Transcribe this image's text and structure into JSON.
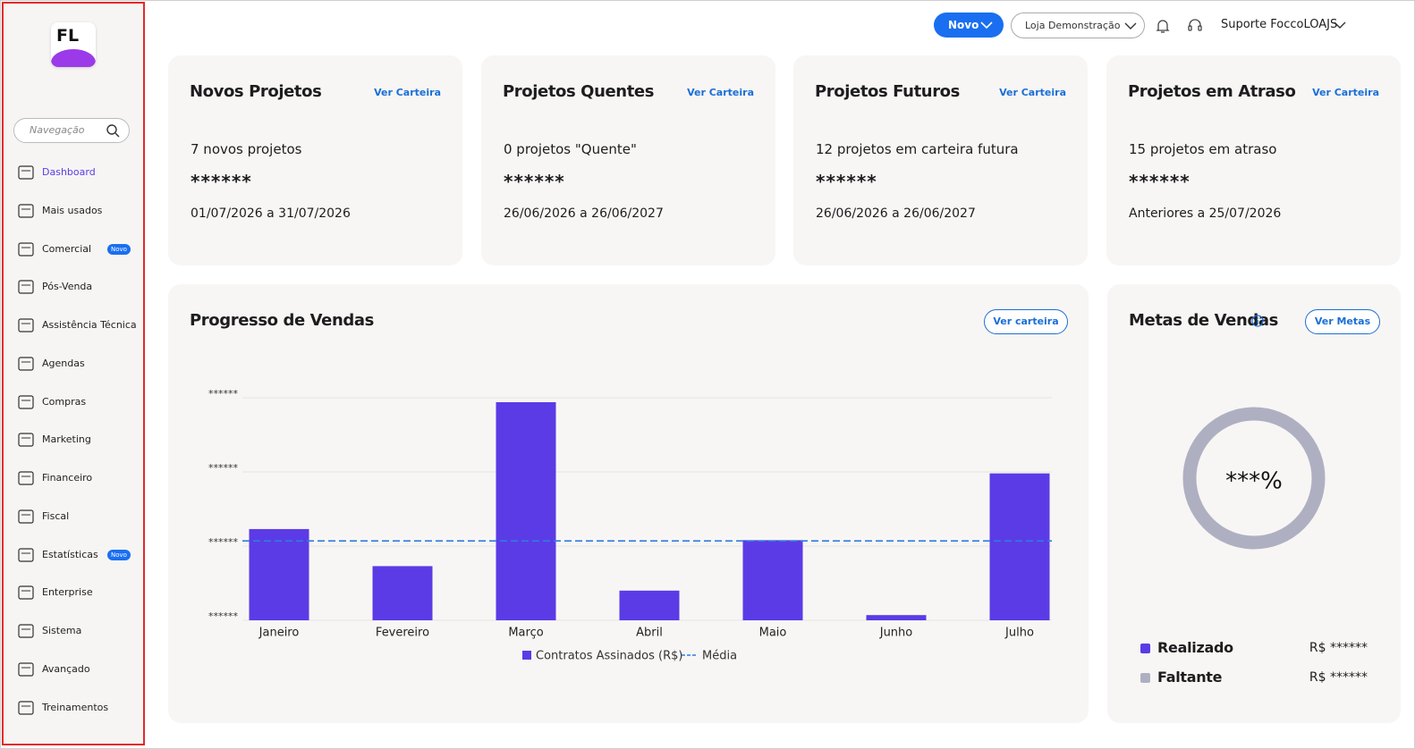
{
  "sidebar": {
    "logo": "FL",
    "search_placeholder": "Navegação",
    "items": [
      {
        "label": "Dashboard"
      },
      {
        "label": "Mais usados"
      },
      {
        "label": "Comercial",
        "badge": "Novo"
      },
      {
        "label": "Pós-Venda"
      },
      {
        "label": "Assistência Técnica"
      },
      {
        "label": "Agendas"
      },
      {
        "label": "Compras"
      },
      {
        "label": "Marketing"
      },
      {
        "label": "Financeiro"
      },
      {
        "label": "Fiscal"
      },
      {
        "label": "Estatísticas",
        "badge": "Novo"
      },
      {
        "label": "Enterprise"
      },
      {
        "label": "Sistema"
      },
      {
        "label": "Avançado"
      },
      {
        "label": "Treinamentos"
      }
    ]
  },
  "topbar": {
    "new_button": "Novo",
    "store": "Loja Demonstração",
    "user": "Suporte FoccoLOAJS"
  },
  "cards": [
    {
      "title": "Novos Projetos",
      "link": "Ver Carteira",
      "count": "7 novos projetos",
      "masked": "******",
      "period": "01/07/2026 a 31/07/2026"
    },
    {
      "title": "Projetos Quentes",
      "link": "Ver Carteira",
      "count": "0 projetos \"Quente\"",
      "masked": "******",
      "period": "26/06/2026 a 26/06/2027"
    },
    {
      "title": "Projetos Futuros",
      "link": "Ver Carteira",
      "count": "12 projetos em carteira futura",
      "masked": "******",
      "period": "26/06/2026 a 26/06/2027"
    },
    {
      "title": "Projetos em Atraso",
      "link": "Ver Carteira",
      "count": "15 projetos em atraso",
      "masked": "******",
      "period": "Anteriores a 25/07/2026"
    }
  ],
  "chart_data": {
    "type": "bar",
    "title": "Progresso de Vendas",
    "link": "Ver carteira",
    "categories": [
      "Janeiro",
      "Fevereiro",
      "Março",
      "Abril",
      "Maio",
      "Junho",
      "Julho"
    ],
    "series": [
      {
        "name": "Contratos Assinados (R$)",
        "color": "#5b3be6",
        "values": [
          1.23,
          0.73,
          2.94,
          0.4,
          1.08,
          0.07,
          1.98
        ]
      }
    ],
    "average": {
      "name": "Média",
      "color": "#2f7be0",
      "value": 1.07
    },
    "ylim": [
      0,
      3
    ],
    "yticks": [
      {
        "value": 0,
        "label": "******"
      },
      {
        "value": 1,
        "label": "******"
      },
      {
        "value": 2,
        "label": "******"
      },
      {
        "value": 3,
        "label": "******"
      }
    ],
    "grid": true
  },
  "goals": {
    "title": "Metas de Vendas",
    "link": "Ver Metas",
    "center": "***%",
    "legend": [
      {
        "name": "Realizado",
        "color": "#5b3be6",
        "amount": "R$ ******"
      },
      {
        "name": "Faltante",
        "color": "#aeb0c2",
        "amount": "R$ ******"
      }
    ]
  }
}
